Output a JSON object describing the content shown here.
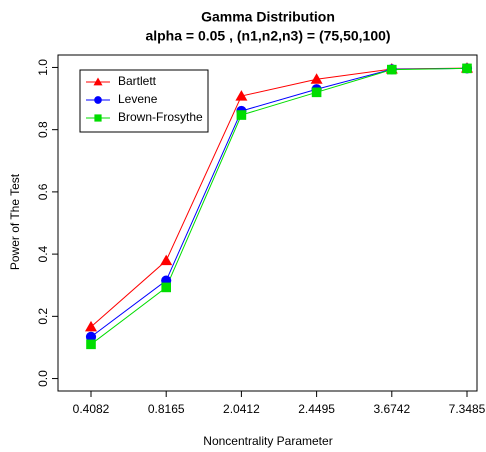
{
  "chart_data": {
    "type": "line",
    "title": "Gamma Distribution",
    "subtitle": "alpha = 0.05 , (n1,n2,n3) = (75,50,100)",
    "x_label": "Noncentrality Parameter",
    "y_label": "Power of The Test",
    "categories": [
      "0.4082",
      "0.8165",
      "2.0412",
      "2.4495",
      "3.6742",
      "7.3485"
    ],
    "series": [
      {
        "name": "Bartlett",
        "color": "#ff0000",
        "marker": "triangle",
        "values": [
          0.166,
          0.379,
          0.908,
          0.962,
          0.995,
          0.998
        ]
      },
      {
        "name": "Levene",
        "color": "#0000ff",
        "marker": "circle",
        "values": [
          0.134,
          0.315,
          0.86,
          0.93,
          0.994,
          0.997
        ]
      },
      {
        "name": "Brown-Frosythe",
        "color": "#00dd00",
        "marker": "square",
        "values": [
          0.11,
          0.293,
          0.847,
          0.92,
          0.993,
          0.997
        ]
      }
    ],
    "ylim": [
      -0.04,
      1.04
    ],
    "yticks": [
      {
        "value": 0,
        "label": "0.0"
      },
      0.2,
      0.4,
      0.6,
      0.8,
      {
        "value": 1,
        "label": "1.0"
      }
    ],
    "legend": "top-left"
  }
}
